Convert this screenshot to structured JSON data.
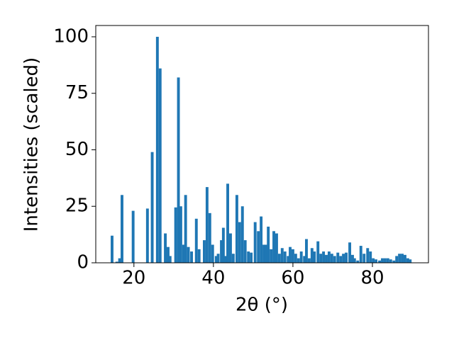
{
  "chart_data": {
    "type": "bar",
    "xlabel": "2θ (°)",
    "ylabel": "Intensities (scaled)",
    "x": [
      14.5,
      15.7,
      16.4,
      17.0,
      19.8,
      23.4,
      24.6,
      25.9,
      26.6,
      27.9,
      28.6,
      29.1,
      30.5,
      31.2,
      31.8,
      32.5,
      33.0,
      33.7,
      34.5,
      35.7,
      36.4,
      37.7,
      38.4,
      39.1,
      39.8,
      40.7,
      41.2,
      42.0,
      42.5,
      43.0,
      43.6,
      44.3,
      45.0,
      45.9,
      46.6,
      47.3,
      48.0,
      48.8,
      49.5,
      50.5,
      51.3,
      52.0,
      52.7,
      53.2,
      53.8,
      54.5,
      55.2,
      55.9,
      56.6,
      57.3,
      58.0,
      58.8,
      59.3,
      60.0,
      60.7,
      61.4,
      62.1,
      62.9,
      63.4,
      64.1,
      64.8,
      65.4,
      66.3,
      67.0,
      67.7,
      68.4,
      69.1,
      69.8,
      70.5,
      71.3,
      72.0,
      72.7,
      73.4,
      74.3,
      75.0,
      75.5,
      76.3,
      77.1,
      77.9,
      78.8,
      79.5,
      80.2,
      80.9,
      81.8,
      82.5,
      83.2,
      83.9,
      84.6,
      85.4,
      86.1,
      86.8,
      87.5,
      88.2,
      88.9,
      89.5
    ],
    "values": [
      12,
      0.5,
      2,
      30,
      23,
      24,
      49,
      100,
      86,
      13,
      7,
      3,
      24.5,
      82,
      25,
      8,
      30,
      7,
      5,
      19.5,
      6,
      10,
      33.5,
      22,
      8,
      3,
      4,
      10,
      15.5,
      3,
      35,
      13,
      4,
      30,
      18,
      25,
      10,
      5,
      4.5,
      18,
      14,
      20.5,
      8,
      8,
      16,
      6,
      14,
      13,
      4,
      6.5,
      5,
      3,
      7,
      6,
      4,
      2,
      5,
      3,
      10.5,
      2,
      6.5,
      5,
      9.5,
      4,
      5,
      3.5,
      5,
      4,
      3,
      4.5,
      3,
      4,
      4.5,
      9,
      3.5,
      2,
      1,
      7.5,
      4,
      6.5,
      5,
      2,
      1.5,
      1,
      2,
      2,
      2,
      1.5,
      1,
      3,
      4,
      4,
      3.5,
      2,
      1.5
    ],
    "color": "#1f77b4",
    "xlim": [
      10.4,
      94.1
    ],
    "xticks": [
      20,
      40,
      60,
      80
    ],
    "ylim": [
      0,
      105
    ],
    "yticks": [
      0,
      25,
      50,
      75,
      100
    ]
  }
}
